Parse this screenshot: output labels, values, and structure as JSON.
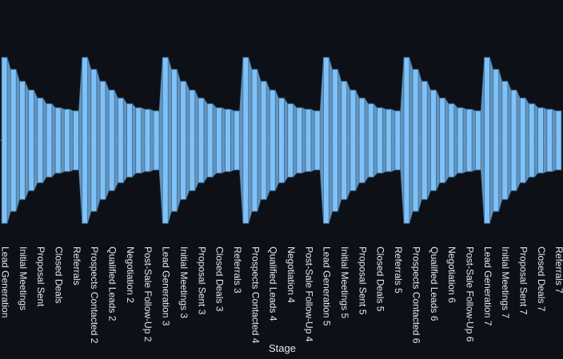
{
  "chart_data": {
    "type": "funnel",
    "x_label": "Stage",
    "color": "#80c1f7",
    "categories": [
      "Lead Generation",
      null,
      "Initial Meetings",
      null,
      "Proposal Sent",
      null,
      "Closed Deals",
      null,
      "Referrals",
      null,
      "Prospects Contacted 2",
      null,
      "Qualified Leads 2",
      null,
      "Negotiation 2",
      null,
      "Post-Sale Follow-Up 2",
      null,
      "Lead Generation 3",
      null,
      "Initial Meetings 3",
      null,
      "Proposal Sent 3",
      null,
      "Closed Deals 3",
      null,
      "Referrals 3",
      null,
      "Prospects Contacted 4",
      null,
      "Qualified Leads 4",
      null,
      "Negotiation 4",
      null,
      "Post-Sale Follow-Up 4",
      null,
      "Lead Generation 5",
      null,
      "Initial Meetings 5",
      null,
      "Proposal Sent 5",
      null,
      "Closed Deals 5",
      null,
      "Referrals 5",
      null,
      "Prospects Contacted 6",
      null,
      "Qualified Leads 6",
      null,
      "Negotiation 6",
      null,
      "Post-Sale Follow-Up 6",
      null,
      "Lead Generation 7",
      null,
      "Initial Meetings 7",
      null,
      "Proposal Sent 7",
      null,
      "Closed Deals 7",
      null,
      "Referrals 7"
    ],
    "values": [
      100,
      85.6,
      71.2,
      60.6,
      51,
      44.2,
      39.4,
      37.5,
      35.6,
      100,
      85.6,
      71.2,
      60.6,
      51,
      44.2,
      39.4,
      37.5,
      35.6,
      100,
      85.6,
      71.2,
      60.6,
      51,
      44.2,
      39.4,
      37.5,
      35.6,
      100,
      85.6,
      71.2,
      60.6,
      51,
      44.2,
      39.4,
      37.5,
      35.6,
      100,
      85.6,
      71.2,
      60.6,
      51,
      44.2,
      39.4,
      37.5,
      35.6,
      100,
      85.6,
      71.2,
      60.6,
      51,
      44.2,
      39.4,
      37.5,
      35.6,
      100,
      85.6,
      71.2,
      60.6,
      51,
      44.2,
      39.4,
      37.5,
      35.6
    ]
  }
}
